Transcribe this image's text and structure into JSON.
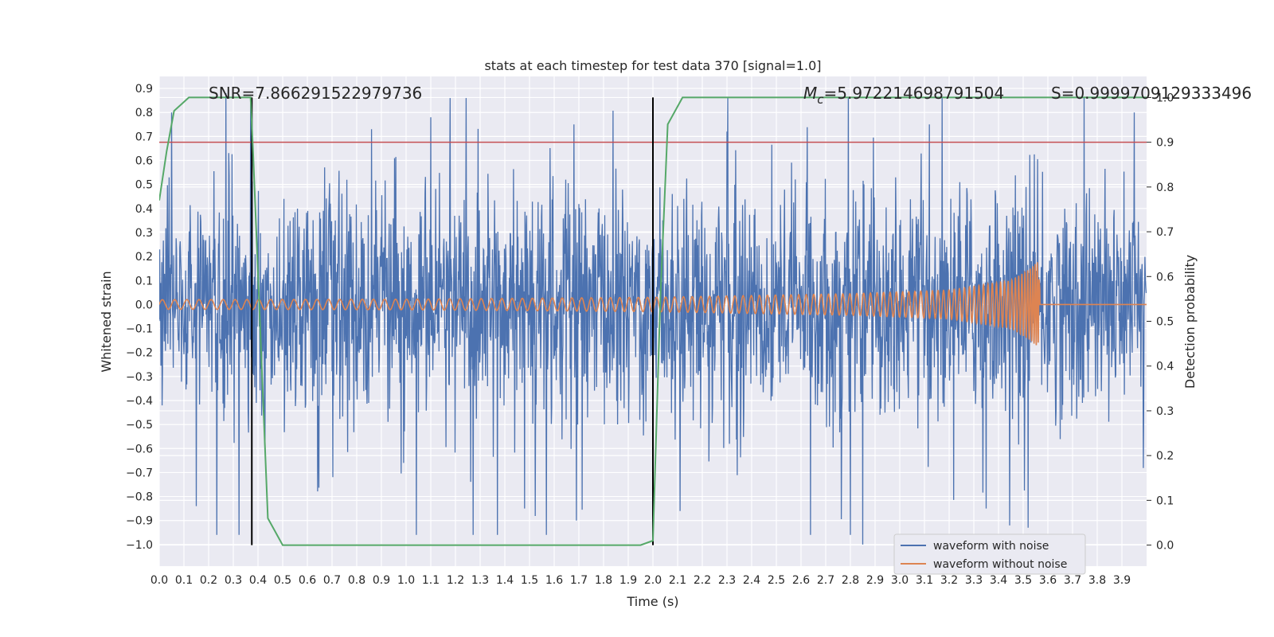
{
  "chart_data": {
    "type": "line",
    "title": "stats at each timestep for test data 370 [signal=1.0]",
    "xlabel": "Time (s)",
    "ylabel": "Whitened strain",
    "y2label": "Detection probability",
    "xlim": [
      0.0,
      4.0
    ],
    "ylim": [
      -1.09,
      0.95
    ],
    "y2lim": [
      -0.047,
      1.047
    ],
    "x_ticks": [
      0.0,
      0.1,
      0.2,
      0.3,
      0.4,
      0.5,
      0.6,
      0.7,
      0.8,
      0.9,
      1.0,
      1.1,
      1.2,
      1.3,
      1.4,
      1.5,
      1.6,
      1.7,
      1.8,
      1.9,
      2.0,
      2.1,
      2.2,
      2.3,
      2.4,
      2.5,
      2.6,
      2.7,
      2.8,
      2.9,
      3.0,
      3.1,
      3.2,
      3.3,
      3.4,
      3.5,
      3.6,
      3.7,
      3.8,
      3.9
    ],
    "y_ticks": [
      0.9,
      0.8,
      0.7,
      0.6,
      0.5,
      0.4,
      0.3,
      0.2,
      0.1,
      0.0,
      -0.1,
      -0.2,
      -0.3,
      -0.4,
      -0.5,
      -0.6,
      -0.7,
      -0.8,
      -0.9,
      -1.0
    ],
    "y2_ticks": [
      1.0,
      0.9,
      0.8,
      0.7,
      0.6,
      0.5,
      0.4,
      0.3,
      0.2,
      0.1,
      0.0
    ],
    "grid": true,
    "legend_position": "bottom-right",
    "annotations": {
      "snr": "SNR=7.866291522979736",
      "mc_symbol": "M",
      "mc_sub": "c",
      "mc_value": "=5.972214698791504",
      "s": "S=0.9999709129333496"
    },
    "series": [
      {
        "name": "waveform with noise",
        "color": "#4c72b0",
        "axis": "left",
        "description_values": "noise envelope ±0.5 typical, extremes 0.88 and -1.0",
        "peaks": [
          [
            0.05,
            0.8
          ],
          [
            0.27,
            0.88
          ],
          [
            0.37,
            0.84
          ],
          [
            0.86,
            0.73
          ],
          [
            1.1,
            0.78
          ],
          [
            1.68,
            0.75
          ],
          [
            2.3,
            0.72
          ],
          [
            3.12,
            0.75
          ],
          [
            3.95,
            0.8
          ],
          [
            0.15,
            -0.84
          ],
          [
            0.99,
            -0.66
          ],
          [
            1.48,
            -0.85
          ],
          [
            1.69,
            -0.9
          ],
          [
            2.11,
            -0.86
          ],
          [
            2.85,
            -1.0
          ],
          [
            3.35,
            -0.85
          ],
          [
            3.52,
            -0.93
          ]
        ]
      },
      {
        "name": "waveform without noise",
        "color": "#dd8452",
        "axis": "left",
        "envelope": [
          [
            0.0,
            0.02
          ],
          [
            1.0,
            0.022
          ],
          [
            2.0,
            0.03
          ],
          [
            2.8,
            0.045
          ],
          [
            3.2,
            0.06
          ],
          [
            3.45,
            0.1
          ],
          [
            3.53,
            0.15
          ],
          [
            3.56,
            0.18
          ],
          [
            3.57,
            0.02
          ],
          [
            3.58,
            0.0
          ],
          [
            4.0,
            0.0
          ]
        ],
        "chirp": {
          "t_start": 0.0,
          "t_merge": 3.565,
          "f_start": 20
        }
      },
      {
        "name": "",
        "color": "#55a868",
        "axis": "right",
        "x": [
          0.0,
          0.03,
          0.06,
          0.12,
          0.37,
          0.38,
          0.44,
          0.5,
          1.95,
          2.0,
          2.03,
          2.06,
          2.12,
          4.0
        ],
        "y": [
          0.77,
          0.88,
          0.97,
          1.0,
          1.0,
          0.88,
          0.06,
          0.0,
          0.0,
          0.01,
          0.55,
          0.94,
          1.0,
          1.0
        ]
      }
    ],
    "hlines": [
      {
        "axis": "right",
        "y": 0.9,
        "color": "#c44e52"
      }
    ],
    "vlines": [
      {
        "x": 0.375,
        "color": "#000000"
      },
      {
        "x": 2.0,
        "color": "#000000"
      }
    ]
  }
}
